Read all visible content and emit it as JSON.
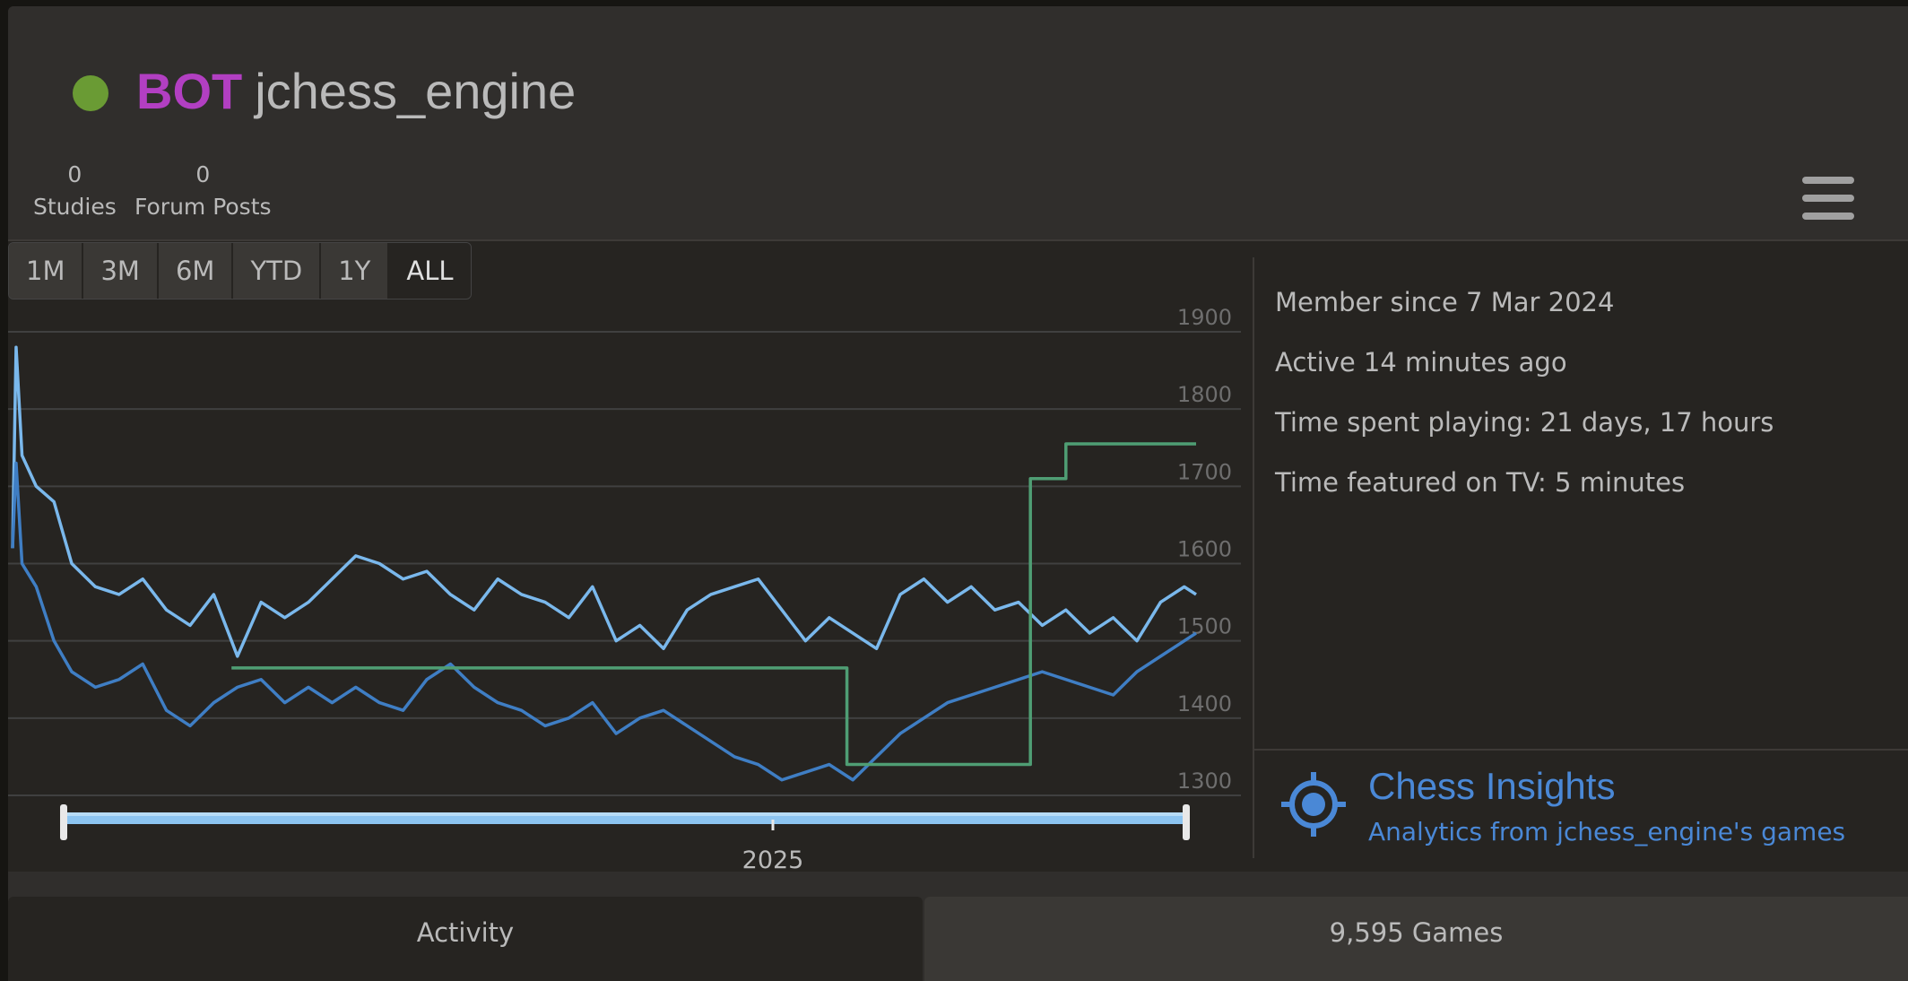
{
  "header": {
    "title_tag": "BOT",
    "username": "jchess_engine",
    "status": "online",
    "stats": [
      {
        "value": "0",
        "label": "Studies"
      },
      {
        "value": "0",
        "label": "Forum Posts"
      }
    ],
    "menu_icon": "hamburger-icon"
  },
  "range_buttons": [
    {
      "label": "1M",
      "active": false
    },
    {
      "label": "3M",
      "active": false
    },
    {
      "label": "6M",
      "active": false
    },
    {
      "label": "YTD",
      "active": false
    },
    {
      "label": "1Y",
      "active": false
    },
    {
      "label": "ALL",
      "active": true
    }
  ],
  "info": {
    "member_since": "Member since 7 Mar 2024",
    "active": "Active 14 minutes ago",
    "time_playing": "Time spent playing: 21 days, 17 hours",
    "time_tv": "Time featured on TV: 5 minutes"
  },
  "insights": {
    "title": "Chess Insights",
    "subtitle": "Analytics from jchess_engine's games",
    "icon": "target-icon"
  },
  "tabs": [
    {
      "label": "Activity",
      "active": true
    },
    {
      "label": "9,595 Games",
      "active": false
    }
  ],
  "colors": {
    "accent": "#4a88d6",
    "bot_tag": "#b23fc2",
    "online": "#6a9b34",
    "series_light_blue": "#7ab8ec",
    "series_dark_blue": "#3f7ec4",
    "series_green": "#4f9e74"
  },
  "chart_data": {
    "type": "line",
    "ylim": [
      1280,
      1900
    ],
    "yticks": [
      1900,
      1800,
      1700,
      1600,
      1500,
      1400,
      1300
    ],
    "x_tick_labels": [
      "2025"
    ],
    "grid": true,
    "legend": "none",
    "series": [
      {
        "color": "#7ab8ec",
        "x": [
          0,
          0.3,
          0.8,
          2,
          3.5,
          5,
          7,
          9,
          11,
          13,
          15,
          17,
          19,
          21,
          23,
          25,
          27,
          29,
          31,
          33,
          35,
          37,
          39,
          41,
          43,
          45,
          47,
          49,
          51,
          53,
          55,
          57,
          59,
          61,
          63,
          65,
          67,
          69,
          71,
          73,
          75,
          77,
          79,
          81,
          83,
          85,
          87,
          89,
          91,
          93,
          95,
          97,
          99,
          100
        ],
        "values": [
          1620,
          1880,
          1740,
          1700,
          1680,
          1600,
          1570,
          1560,
          1580,
          1540,
          1520,
          1560,
          1480,
          1550,
          1530,
          1550,
          1580,
          1610,
          1600,
          1580,
          1590,
          1560,
          1540,
          1580,
          1560,
          1550,
          1530,
          1570,
          1500,
          1520,
          1490,
          1540,
          1560,
          1570,
          1580,
          1540,
          1500,
          1530,
          1510,
          1490,
          1560,
          1580,
          1550,
          1570,
          1540,
          1550,
          1520,
          1540,
          1510,
          1530,
          1500,
          1550,
          1570,
          1560
        ]
      },
      {
        "color": "#3f7ec4",
        "x": [
          0,
          0.3,
          0.8,
          2,
          3.5,
          5,
          7,
          9,
          11,
          13,
          15,
          17,
          19,
          21,
          23,
          25,
          27,
          29,
          31,
          33,
          35,
          37,
          39,
          41,
          43,
          45,
          47,
          49,
          51,
          53,
          55,
          57,
          59,
          61,
          63,
          65,
          67,
          69,
          71,
          73,
          75,
          77,
          79,
          81,
          83,
          85,
          87,
          89,
          91,
          93,
          95,
          97,
          99,
          100
        ],
        "values": [
          1620,
          1730,
          1600,
          1570,
          1500,
          1460,
          1440,
          1450,
          1470,
          1410,
          1390,
          1420,
          1440,
          1450,
          1420,
          1440,
          1420,
          1440,
          1420,
          1410,
          1450,
          1470,
          1440,
          1420,
          1410,
          1390,
          1400,
          1420,
          1380,
          1400,
          1410,
          1390,
          1370,
          1350,
          1340,
          1320,
          1330,
          1340,
          1320,
          1350,
          1380,
          1400,
          1420,
          1430,
          1440,
          1450,
          1460,
          1450,
          1440,
          1430,
          1460,
          1480,
          1500,
          1510
        ]
      },
      {
        "color": "#4f9e74",
        "x": [
          18.5,
          70.5,
          70.5,
          86,
          86,
          89,
          89,
          100
        ],
        "values": [
          1465,
          1465,
          1340,
          1340,
          1710,
          1710,
          1755,
          1755
        ]
      }
    ]
  }
}
